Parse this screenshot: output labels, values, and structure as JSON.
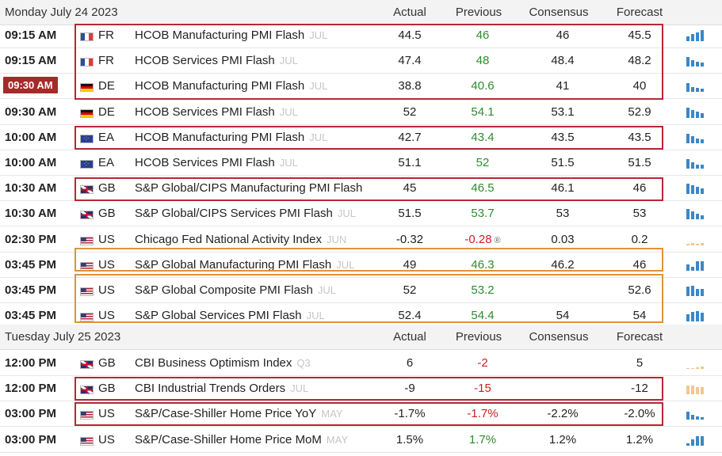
{
  "days": [
    {
      "date": "Monday July 24 2023",
      "columns": {
        "actual": "Actual",
        "previous": "Previous",
        "consensus": "Consensus",
        "forecast": "Forecast"
      },
      "events": [
        {
          "time": "09:15 AM",
          "country": "FR",
          "flag": "fr",
          "event": "HCOB Manufacturing PMI Flash",
          "period": "JUL",
          "actual": "44.5",
          "previous": "46",
          "previous_color": "green",
          "consensus": "46",
          "forecast": "45.5",
          "spark_color": "#3a87c8"
        },
        {
          "time": "09:15 AM",
          "country": "FR",
          "flag": "fr",
          "event": "HCOB Services PMI Flash",
          "period": "JUL",
          "actual": "47.4",
          "previous": "48",
          "previous_color": "green",
          "consensus": "48.4",
          "forecast": "48.2",
          "spark_color": "#3a87c8"
        },
        {
          "time": "09:30 AM",
          "time_highlight": true,
          "country": "DE",
          "flag": "de",
          "event": "HCOB Manufacturing PMI Flash",
          "period": "JUL",
          "actual": "38.8",
          "previous": "40.6",
          "previous_color": "green",
          "consensus": "41",
          "forecast": "40",
          "spark_color": "#3a87c8"
        },
        {
          "time": "09:30 AM",
          "country": "DE",
          "flag": "de",
          "event": "HCOB Services PMI Flash",
          "period": "JUL",
          "actual": "52",
          "previous": "54.1",
          "previous_color": "green",
          "consensus": "53.1",
          "forecast": "52.9",
          "spark_color": "#3a87c8"
        },
        {
          "time": "10:00 AM",
          "country": "EA",
          "flag": "ea",
          "event": "HCOB Manufacturing PMI Flash",
          "period": "JUL",
          "actual": "42.7",
          "previous": "43.4",
          "previous_color": "green",
          "consensus": "43.5",
          "forecast": "43.5",
          "spark_color": "#3a87c8"
        },
        {
          "time": "10:00 AM",
          "country": "EA",
          "flag": "ea",
          "event": "HCOB Services PMI Flash",
          "period": "JUL",
          "actual": "51.1",
          "previous": "52",
          "previous_color": "green",
          "consensus": "51.5",
          "forecast": "51.5",
          "spark_color": "#3a87c8"
        },
        {
          "time": "10:30 AM",
          "country": "GB",
          "flag": "gb",
          "event": "S&P Global/CIPS Manufacturing PMI Flash",
          "period": "",
          "actual": "45",
          "previous": "46.5",
          "previous_color": "green",
          "consensus": "46.1",
          "forecast": "46",
          "spark_color": "#3a87c8"
        },
        {
          "time": "10:30 AM",
          "country": "GB",
          "flag": "gb",
          "event": "S&P Global/CIPS Services PMI Flash",
          "period": "JUL",
          "actual": "51.5",
          "previous": "53.7",
          "previous_color": "green",
          "consensus": "53",
          "forecast": "53",
          "spark_color": "#3a87c8"
        },
        {
          "time": "02:30 PM",
          "country": "US",
          "flag": "us",
          "event": "Chicago Fed National Activity Index",
          "period": "JUN",
          "actual": "-0.32",
          "previous": "-0.28",
          "previous_color": "red",
          "revised_mark": "®",
          "consensus": "0.03",
          "forecast": "0.2",
          "spark_color": "#f0c890"
        },
        {
          "time": "03:45 PM",
          "country": "US",
          "flag": "us",
          "event": "S&P Global Manufacturing PMI Flash",
          "period": "JUL",
          "actual": "49",
          "previous": "46.3",
          "previous_color": "green",
          "consensus": "46.2",
          "forecast": "46",
          "spark_color": "#3a87c8"
        },
        {
          "time": "03:45 PM",
          "country": "US",
          "flag": "us",
          "event": "S&P Global Composite PMI Flash",
          "period": "JUL",
          "actual": "52",
          "previous": "53.2",
          "previous_color": "green",
          "consensus": "",
          "forecast": "52.6",
          "spark_color": "#3a87c8"
        },
        {
          "time": "03:45 PM",
          "country": "US",
          "flag": "us",
          "event": "S&P Global Services PMI Flash",
          "period": "JUL",
          "actual": "52.4",
          "previous": "54.4",
          "previous_color": "green",
          "consensus": "54",
          "forecast": "54",
          "spark_color": "#3a87c8"
        }
      ]
    },
    {
      "date": "Tuesday July 25 2023",
      "columns": {
        "actual": "Actual",
        "previous": "Previous",
        "consensus": "Consensus",
        "forecast": "Forecast"
      },
      "events": [
        {
          "time": "12:00 PM",
          "country": "GB",
          "flag": "gb",
          "event": "CBI Business Optimism Index",
          "period": "Q3",
          "actual": "6",
          "previous": "-2",
          "previous_color": "red",
          "consensus": "",
          "forecast": "5",
          "spark_color": "#f0c890"
        },
        {
          "time": "12:00 PM",
          "country": "GB",
          "flag": "gb",
          "event": "CBI Industrial Trends Orders",
          "period": "JUL",
          "actual": "-9",
          "previous": "-15",
          "previous_color": "red",
          "consensus": "",
          "forecast": "-12",
          "spark_color": "#f0c890"
        },
        {
          "time": "03:00 PM",
          "country": "US",
          "flag": "us",
          "event": "S&P/Case-Shiller Home Price YoY",
          "period": "MAY",
          "actual": "-1.7%",
          "previous": "-1.7%",
          "previous_color": "red",
          "consensus": "-2.2%",
          "forecast": "-2.0%",
          "spark_color": "#3a87c8"
        },
        {
          "time": "03:00 PM",
          "country": "US",
          "flag": "us",
          "event": "S&P/Case-Shiller Home Price MoM",
          "period": "MAY",
          "actual": "1.5%",
          "previous": "1.7%",
          "previous_color": "green",
          "consensus": "1.2%",
          "forecast": "1.2%",
          "spark_color": "#3a87c8"
        }
      ]
    }
  ]
}
